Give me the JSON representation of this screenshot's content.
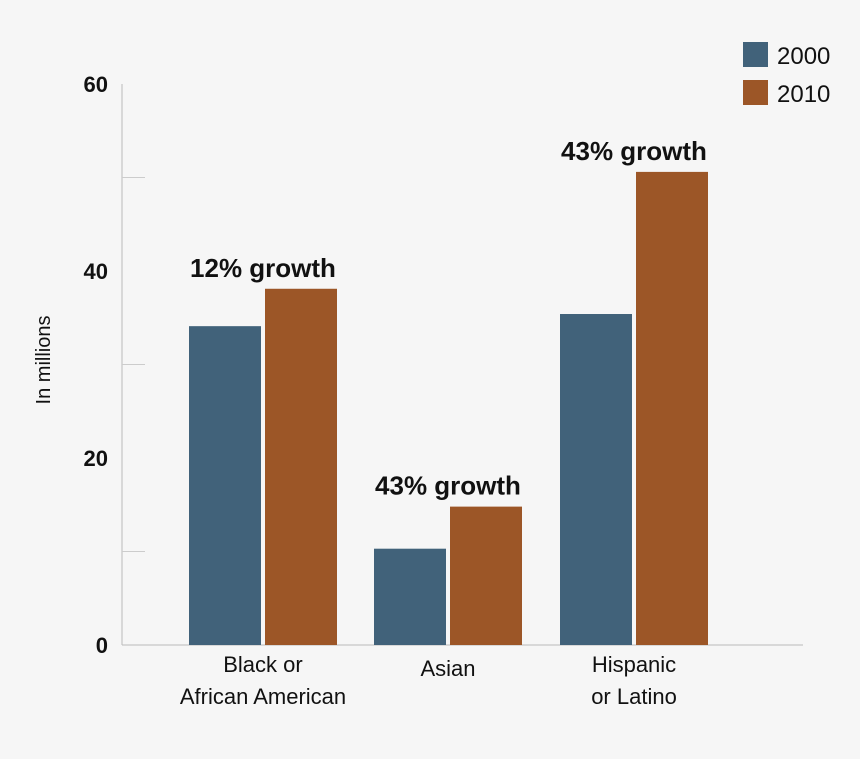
{
  "chart_data": {
    "type": "bar",
    "categories": [
      [
        "Black or",
        "African American"
      ],
      [
        "Asian"
      ],
      [
        "Hispanic",
        "or Latino"
      ]
    ],
    "series": [
      {
        "name": "2000",
        "color": "#41627a",
        "values": [
          34.1,
          10.3,
          35.4
        ]
      },
      {
        "name": "2010",
        "color": "#9c5627",
        "values": [
          38.1,
          14.8,
          50.6
        ]
      }
    ],
    "annotations": [
      "12% growth",
      "43% growth",
      "43% growth"
    ],
    "ylabel": "In millions",
    "xlabel": "",
    "ylim": [
      0,
      60
    ],
    "yticks": [
      0,
      20,
      40,
      60
    ],
    "minor_yticks": [
      10,
      30,
      50
    ],
    "grid": false,
    "legend_position": "top-right"
  }
}
